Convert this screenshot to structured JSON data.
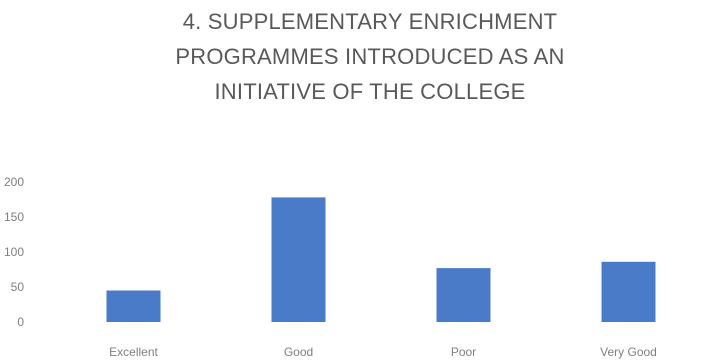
{
  "chart_data": {
    "type": "bar",
    "title_lines": [
      "4. SUPPLEMENTARY ENRICHMENT",
      "PROGRAMMES INTRODUCED AS AN",
      "INITIATIVE OF THE COLLEGE"
    ],
    "categories": [
      "Excellent",
      "Good",
      "Poor",
      "Very Good"
    ],
    "values": [
      45,
      178,
      77,
      86
    ],
    "ylim": [
      0,
      200
    ],
    "yticks": [
      0,
      50,
      100,
      150,
      200
    ],
    "xlabel": "",
    "ylabel": "",
    "grid": false,
    "legend": "none",
    "bar_color": "#4a7bc8",
    "text_color": "#7f7f7f",
    "title_color": "#595959"
  }
}
